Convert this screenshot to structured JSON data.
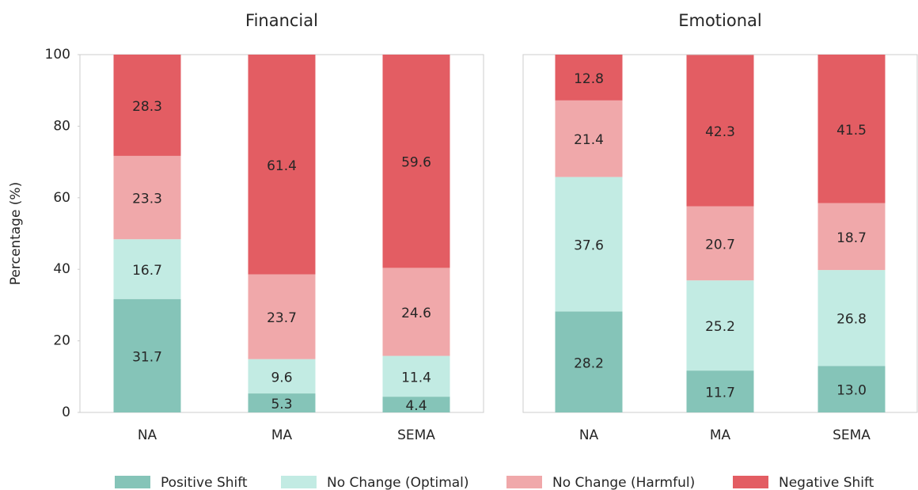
{
  "chart_data": [
    {
      "type": "bar",
      "stacked": true,
      "title": "Financial",
      "ylabel": "Percentage (%)",
      "categories": [
        "NA",
        "MA",
        "SEMA"
      ],
      "ylim": [
        0,
        100
      ],
      "yticks": [
        0,
        20,
        40,
        60,
        80,
        100
      ],
      "legend": "bottom",
      "series": [
        {
          "name": "Positive Shift",
          "color": "#85c4b8",
          "values": [
            31.7,
            5.3,
            4.4
          ]
        },
        {
          "name": "No Change (Optimal)",
          "color": "#c2ebe3",
          "values": [
            16.7,
            9.6,
            11.4
          ]
        },
        {
          "name": "No Change (Harmful)",
          "color": "#f0a8aa",
          "values": [
            23.3,
            23.7,
            24.6
          ]
        },
        {
          "name": "Negative Shift",
          "color": "#e35d63",
          "values": [
            28.3,
            61.4,
            59.6
          ]
        }
      ]
    },
    {
      "type": "bar",
      "stacked": true,
      "title": "Emotional",
      "categories": [
        "NA",
        "MA",
        "SEMA"
      ],
      "ylim": [
        0,
        100
      ],
      "series": [
        {
          "color": "#85c4b8",
          "values": [
            28.2,
            11.7,
            13.0
          ],
          "value_labels": [
            "28.2",
            "11.7",
            "13.0"
          ]
        },
        {
          "color": "#c2ebe3",
          "values": [
            37.6,
            25.2,
            26.8
          ]
        },
        {
          "color": "#f0a8aa",
          "values": [
            21.4,
            20.7,
            18.7
          ]
        },
        {
          "color": "#e35d63",
          "values": [
            12.8,
            42.3,
            41.5
          ]
        }
      ]
    }
  ]
}
